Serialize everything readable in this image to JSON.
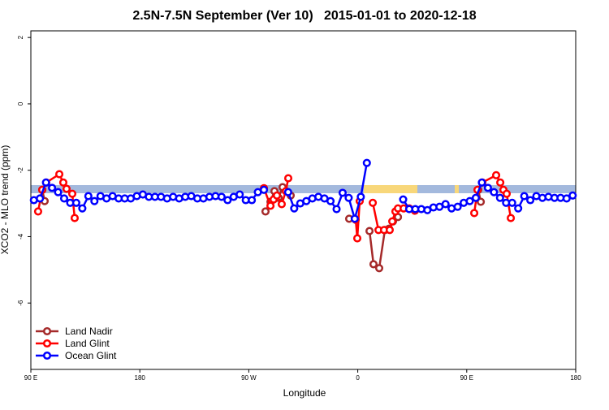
{
  "chart_data": {
    "type": "line",
    "title": "2.5N-7.5N September (Ver 10)   2015-01-01 to 2020-12-18",
    "xlabel": "Longitude",
    "ylabel": "XCO2 - MLO trend (ppm)",
    "xlim": [
      90,
      540
    ],
    "ylim": [
      -8,
      2.2
    ],
    "xticks": [
      {
        "value": 90,
        "label": "90 E"
      },
      {
        "value": 180,
        "label": "180"
      },
      {
        "value": 270,
        "label": "90 W"
      },
      {
        "value": 360,
        "label": "0"
      },
      {
        "value": 450,
        "label": "90 E"
      },
      {
        "value": 540,
        "label": "180"
      }
    ],
    "yticks": [
      2,
      0,
      -2,
      -4,
      -6
    ],
    "legend": "bottomleft",
    "series": [
      {
        "name": "Land Nadir",
        "color": "#a52a2a",
        "x": [
          99.4,
          101.4,
          null,
          283.8,
          287.9,
          291.2,
          294.6,
          297.9,
          304.6,
          null,
          352.9,
          null,
          369.7,
          373.0,
          377.7,
          382.4,
          385.8,
          389.1,
          393.2,
          null,
          459.5,
          461.6
        ],
        "values": [
          -2.59,
          -2.93,
          null,
          -3.24,
          -2.95,
          -2.63,
          -2.83,
          -2.51,
          -2.76,
          null,
          -3.46,
          null,
          -3.83,
          -4.83,
          -4.95,
          -3.8,
          -3.76,
          -3.54,
          -3.41,
          null,
          -2.59,
          -2.95
        ]
      },
      {
        "name": "Land Glint",
        "color": "#ff0000",
        "x": [
          96.0,
          99.4,
          102.7,
          113.5,
          116.8,
          119.5,
          124.2,
          126.2,
          null,
          282.5,
          287.9,
          290.5,
          293.2,
          297.2,
          300.6,
          302.6,
          null,
          358.3,
          359.6,
          361.6,
          null,
          372.4,
          377.1,
          381.7,
          386.4,
          388.5,
          391.1,
          393.2,
          397.9,
          402.5,
          407.2,
          null,
          456.2,
          458.9,
          462.9,
          474.3,
          477.7,
          480.3,
          483.0,
          486.4
        ],
        "values": [
          -3.24,
          -2.59,
          -2.37,
          -2.12,
          -2.37,
          -2.56,
          -2.71,
          -3.44,
          null,
          -2.54,
          -3.07,
          -2.88,
          -2.76,
          -3.02,
          -2.63,
          -2.24,
          null,
          -3.49,
          -4.05,
          -2.93,
          null,
          -2.98,
          -3.8,
          -3.8,
          -3.8,
          -3.54,
          -3.24,
          -3.15,
          -3.15,
          -3.15,
          -3.22,
          null,
          -3.29,
          -2.59,
          -2.37,
          -2.15,
          -2.37,
          -2.59,
          -2.71,
          -3.44
        ]
      },
      {
        "name": "Ocean Glint",
        "color": "#0000ff",
        "x": [
          92.5,
          97.5,
          102.5,
          107.5,
          112.5,
          117.5,
          122.5,
          127.5,
          132.5,
          137.5,
          142.5,
          147.5,
          152.5,
          157.5,
          162.5,
          167.5,
          172.5,
          177.5,
          182.5,
          187.5,
          192.5,
          197.5,
          202.5,
          207.5,
          212.5,
          217.5,
          222.5,
          227.5,
          232.5,
          237.5,
          242.5,
          247.5,
          252.5,
          257.5,
          262.5,
          267.5,
          272.5,
          277.5,
          282.5,
          287.5,
          292.5,
          297.5,
          302.5,
          307.5,
          312.5,
          317.5,
          322.5,
          327.5,
          332.5,
          337.5,
          342.5,
          347.5,
          352.5,
          357.5,
          362.5,
          367.5,
          372.5,
          377.5,
          382.5,
          387.5,
          392.5,
          397.5,
          402.5,
          407.5,
          412.5,
          417.5,
          422.5,
          427.5,
          432.5,
          437.5,
          442.5,
          447.5,
          452.5,
          457.5,
          462.5,
          467.5,
          472.5,
          477.5,
          482.5,
          487.5,
          492.5,
          497.5,
          502.5,
          507.5,
          512.5,
          517.5,
          522.5,
          527.5,
          532.5,
          537.5
        ],
        "values": [
          -2.9,
          -2.85,
          -2.37,
          -2.53,
          -2.66,
          -2.85,
          -2.98,
          -2.98,
          -3.15,
          -2.78,
          -2.93,
          -2.78,
          -2.85,
          -2.78,
          -2.85,
          -2.85,
          -2.85,
          -2.78,
          -2.73,
          -2.8,
          -2.8,
          -2.8,
          -2.85,
          -2.8,
          -2.85,
          -2.8,
          -2.78,
          -2.85,
          -2.85,
          -2.8,
          -2.78,
          -2.8,
          -2.9,
          -2.8,
          -2.73,
          -2.9,
          -2.9,
          -2.66,
          -2.59,
          null,
          null,
          null,
          -2.66,
          -3.15,
          -3.0,
          -2.93,
          -2.85,
          -2.8,
          -2.85,
          -2.93,
          -3.17,
          -2.68,
          -2.83,
          -3.46,
          -2.8,
          -1.78,
          null,
          null,
          null,
          null,
          null,
          -2.88,
          -3.17,
          -3.17,
          -3.17,
          -3.2,
          -3.12,
          -3.1,
          -3.02,
          -3.15,
          -3.1,
          -2.98,
          -2.93,
          -2.83,
          -2.37,
          -2.53,
          -2.66,
          -2.83,
          -2.98,
          -2.98,
          -3.15,
          -2.78,
          -2.9,
          -2.78,
          -2.83,
          -2.8,
          -2.83,
          -2.83,
          -2.85,
          -2.76
        ]
      }
    ]
  }
}
